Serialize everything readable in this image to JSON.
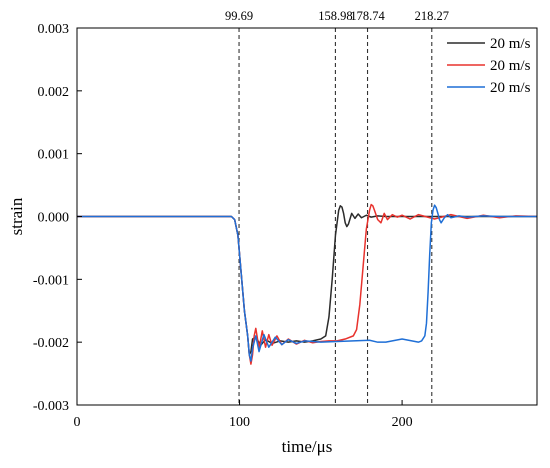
{
  "chart_data": {
    "type": "line",
    "title": "",
    "xlabel": "time/μs",
    "ylabel": "strain",
    "xlim": [
      0,
      283
    ],
    "ylim": [
      -0.003,
      0.003
    ],
    "x_ticks": [
      0,
      100,
      200
    ],
    "x_tick_labels": [
      "0",
      "100",
      "200"
    ],
    "y_ticks": [
      0.003,
      0.002,
      0.001,
      0.0,
      -0.001,
      -0.002,
      -0.003
    ],
    "y_tick_labels": [
      "0.003",
      "0.002",
      "0.001",
      "0.000",
      "-0.001",
      "-0.002",
      "-0.003"
    ],
    "grid": false,
    "legend_position": "top-right",
    "markers": [
      {
        "label": "99.69",
        "x": 99.69
      },
      {
        "label": "158.98",
        "x": 158.98
      },
      {
        "label": "178.74",
        "x": 178.74
      },
      {
        "label": "218.27",
        "x": 218.27
      }
    ],
    "series": [
      {
        "name": "20 m/s",
        "color": "#2b2b2b",
        "x": [
          0,
          95,
          97,
          99,
          101,
          103,
          105,
          106,
          107,
          108,
          110,
          113,
          116,
          120,
          125,
          130,
          135,
          140,
          145,
          150,
          153,
          155,
          157,
          159,
          161,
          162,
          163,
          164,
          165,
          166,
          167,
          169,
          171,
          173,
          175,
          178,
          181,
          185,
          190,
          200,
          210,
          220,
          230,
          240,
          250,
          260,
          270,
          283
        ],
        "y": [
          0,
          0,
          -5e-05,
          -0.0003,
          -0.0009,
          -0.0015,
          -0.0019,
          -0.0022,
          -0.00215,
          -0.00195,
          -0.00192,
          -0.00205,
          -0.00196,
          -0.00202,
          -0.00198,
          -0.002,
          -0.00198,
          -0.002,
          -0.00198,
          -0.00195,
          -0.0019,
          -0.0016,
          -0.001,
          -0.0003,
          0.0001,
          0.00017,
          0.00015,
          5e-05,
          -0.0001,
          -0.00016,
          -0.00012,
          5e-05,
          -3e-05,
          4e-05,
          -2e-05,
          2e-05,
          -1e-05,
          1e-05,
          0,
          0,
          0,
          0,
          0,
          0,
          0,
          0,
          0,
          0
        ]
      },
      {
        "name": "20 m/s",
        "color": "#e8322d",
        "x": [
          0,
          95,
          97,
          99,
          101,
          103,
          105,
          106,
          107,
          108,
          109,
          110,
          112,
          114,
          116,
          118,
          120,
          123,
          126,
          130,
          135,
          140,
          145,
          150,
          155,
          160,
          165,
          170,
          172,
          174,
          176,
          178,
          180,
          181,
          182,
          183,
          185,
          187,
          189,
          191,
          194,
          197,
          200,
          205,
          210,
          220,
          230,
          240,
          250,
          260,
          270,
          283
        ],
        "y": [
          0,
          0,
          -5e-05,
          -0.0003,
          -0.0009,
          -0.0015,
          -0.0019,
          -0.0022,
          -0.00235,
          -0.0022,
          -0.0019,
          -0.00178,
          -0.0021,
          -0.00182,
          -0.00208,
          -0.00188,
          -0.00205,
          -0.0019,
          -0.00204,
          -0.00195,
          -0.00203,
          -0.00197,
          -0.00201,
          -0.00199,
          -0.00198,
          -0.00198,
          -0.00195,
          -0.0019,
          -0.0018,
          -0.0014,
          -0.0008,
          -0.0002,
          0.0001,
          0.00019,
          0.00017,
          0.0001,
          -5e-05,
          -0.0001,
          5e-05,
          -5e-05,
          3e-05,
          -1e-05,
          2e-05,
          -4e-05,
          3e-05,
          -4e-05,
          3e-05,
          -3e-05,
          2e-05,
          -2e-05,
          1e-05,
          0
        ]
      },
      {
        "name": "20 m/s",
        "color": "#1f6fd6",
        "x": [
          0,
          95,
          97,
          99,
          101,
          103,
          105,
          106,
          107,
          108,
          110,
          112,
          115,
          118,
          122,
          126,
          130,
          135,
          140,
          150,
          160,
          170,
          180,
          185,
          190,
          200,
          210,
          212,
          214,
          215,
          216,
          217,
          218,
          219,
          220,
          221,
          222,
          223,
          224,
          226,
          228,
          230,
          235,
          240,
          250,
          260,
          270,
          283
        ],
        "y": [
          0,
          0,
          -5e-05,
          -0.0003,
          -0.0009,
          -0.0015,
          -0.0019,
          -0.0022,
          -0.0023,
          -0.0021,
          -0.0019,
          -0.00215,
          -0.00188,
          -0.00208,
          -0.00192,
          -0.00204,
          -0.00196,
          -0.00202,
          -0.00198,
          -0.002,
          -0.00199,
          -0.00198,
          -0.00197,
          -0.002,
          -0.002,
          -0.00195,
          -0.002,
          -0.00198,
          -0.0019,
          -0.0017,
          -0.0012,
          -0.0006,
          -0.0001,
          0.0001,
          0.00018,
          0.00014,
          5e-05,
          -5e-05,
          -0.0001,
          -2e-05,
          3e-05,
          -2e-05,
          1e-05,
          -1e-05,
          1e-05,
          0,
          0,
          0
        ]
      }
    ]
  }
}
